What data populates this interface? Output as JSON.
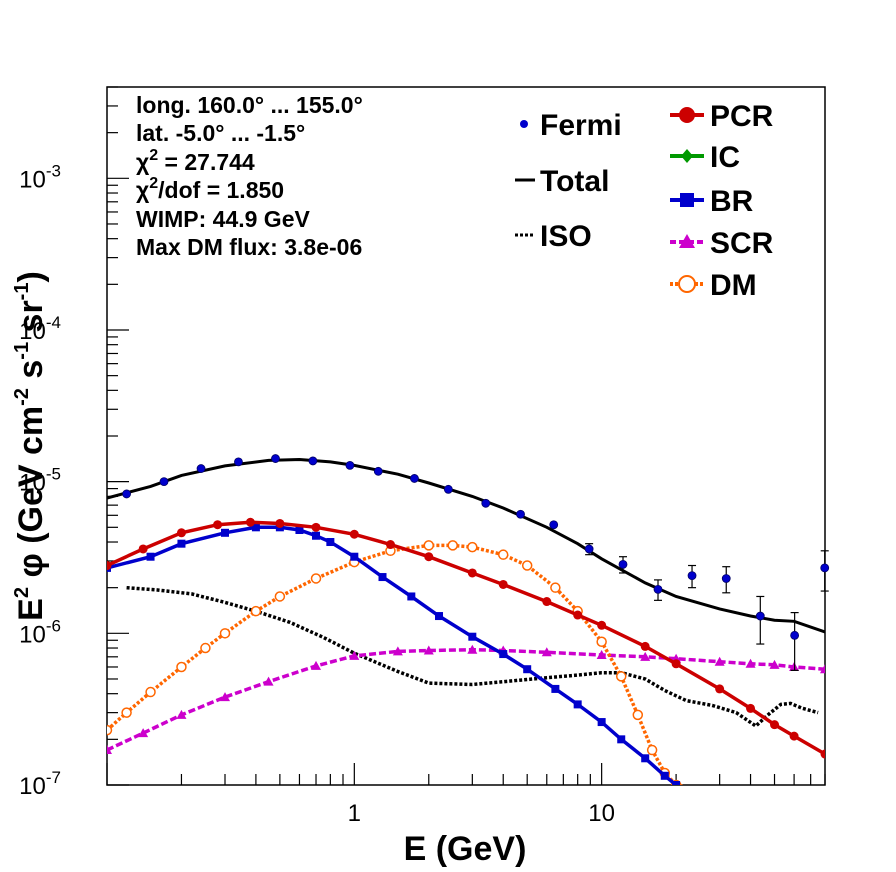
{
  "chart_data": {
    "type": "line",
    "title": "",
    "xlabel": "E (GeV)",
    "ylabel_parts": {
      "a": "E",
      "a_sup": "2",
      "b": " φ (GeV cm",
      "b_sup": "-2",
      "c": " s",
      "c_sup": "-1",
      "d": " sr",
      "d_sup": "-1",
      "e": ")"
    },
    "xscale": "log",
    "yscale": "log",
    "xlim": [
      0.1,
      80
    ],
    "ylim": [
      1e-07,
      0.004
    ],
    "x_ticks": [
      {
        "v": 1,
        "label": "1"
      },
      {
        "v": 10,
        "label": "10"
      }
    ],
    "y_ticks": [
      {
        "v": 1e-07,
        "base": "10",
        "exp": "-7"
      },
      {
        "v": 1e-06,
        "base": "10",
        "exp": "-6"
      },
      {
        "v": 1e-05,
        "base": "10",
        "exp": "-5"
      },
      {
        "v": 0.0001,
        "base": "10",
        "exp": "-4"
      },
      {
        "v": 0.001,
        "base": "10",
        "exp": "-3"
      }
    ],
    "info": [
      {
        "text": "long. 160.0° ... 155.0°"
      },
      {
        "text": "lat. -5.0° ... -1.5°"
      },
      {
        "pre": "χ",
        "sup": "2",
        "post": " = 27.744"
      },
      {
        "pre": "χ",
        "sup": "2",
        "post": "/dof = 1.850"
      },
      {
        "text": "WIMP: 44.9 GeV"
      },
      {
        "text": "Max DM flux: 3.8e-06"
      }
    ],
    "legend_left": [
      {
        "name": "Fermi",
        "style": "point",
        "color": "#0000cc"
      },
      {
        "name": "Total",
        "style": "solid",
        "color": "#000000"
      },
      {
        "name": "ISO",
        "style": "dotted",
        "color": "#000000"
      }
    ],
    "legend_right": [
      {
        "name": "PCR",
        "style": "circle",
        "color": "#cc0000"
      },
      {
        "name": "IC",
        "style": "diamond",
        "color": "#009900"
      },
      {
        "name": "BR",
        "style": "square",
        "color": "#0000cc"
      },
      {
        "name": "SCR",
        "style": "triangle",
        "color": "#cc00cc"
      },
      {
        "name": "DM",
        "style": "open-circle",
        "color": "#ff6600"
      }
    ],
    "fermi": {
      "name": "Fermi",
      "points": [
        {
          "x": 0.12,
          "y": 8.3e-06,
          "err": 0
        },
        {
          "x": 0.17,
          "y": 1e-05,
          "err": 0
        },
        {
          "x": 0.24,
          "y": 1.22e-05,
          "err": 0
        },
        {
          "x": 0.34,
          "y": 1.35e-05,
          "err": 0
        },
        {
          "x": 0.48,
          "y": 1.42e-05,
          "err": 0
        },
        {
          "x": 0.68,
          "y": 1.37e-05,
          "err": 0
        },
        {
          "x": 0.96,
          "y": 1.28e-05,
          "err": 0
        },
        {
          "x": 1.25,
          "y": 1.17e-05,
          "err": 0
        },
        {
          "x": 1.75,
          "y": 1.05e-05,
          "err": 0
        },
        {
          "x": 2.4,
          "y": 8.9e-06,
          "err": 0
        },
        {
          "x": 3.4,
          "y": 7.2e-06,
          "err": 0
        },
        {
          "x": 4.7,
          "y": 6.1e-06,
          "err": 0
        },
        {
          "x": 6.4,
          "y": 5.2e-06,
          "err": 0
        },
        {
          "x": 8.9,
          "y": 3.6e-06,
          "err": 3e-07
        },
        {
          "x": 12.2,
          "y": 2.85e-06,
          "err": 3.5e-07
        },
        {
          "x": 16.9,
          "y": 1.95e-06,
          "err": 3e-07
        },
        {
          "x": 23.2,
          "y": 2.4e-06,
          "err": 4e-07
        },
        {
          "x": 31.9,
          "y": 2.3e-06,
          "err": 4.5e-07
        },
        {
          "x": 43.8,
          "y": 1.3e-06,
          "err": 4.5e-07
        },
        {
          "x": 60.3,
          "y": 9.7e-07,
          "err": 4e-07
        },
        {
          "x": 79.8,
          "y": 2.7e-06,
          "err": 8e-07
        }
      ]
    },
    "series": [
      {
        "name": "Total",
        "color": "#000000",
        "style": "solid",
        "marker": "none",
        "x": [
          0.1,
          0.15,
          0.2,
          0.3,
          0.45,
          0.6,
          0.8,
          1.0,
          1.5,
          2.0,
          3.0,
          4.0,
          6.0,
          8.0,
          10,
          15,
          20,
          30,
          40,
          50,
          60,
          80
        ],
        "y": [
          7.8e-06,
          9.3e-06,
          1.1e-05,
          1.27e-05,
          1.38e-05,
          1.4e-05,
          1.35e-05,
          1.28e-05,
          1.12e-05,
          9.8e-06,
          8e-06,
          6.7e-06,
          5e-06,
          3.9e-06,
          3.1e-06,
          2.15e-06,
          1.75e-06,
          1.45e-06,
          1.3e-06,
          1.22e-06,
          1.2e-06,
          1.02e-06
        ]
      },
      {
        "name": "ISO",
        "color": "#000000",
        "style": "dotted",
        "marker": "none",
        "x": [
          0.12,
          0.16,
          0.22,
          0.3,
          0.4,
          0.55,
          0.75,
          1.0,
          1.5,
          2.0,
          3.0,
          4.0,
          6.0,
          8.0,
          10,
          12,
          15,
          18,
          22,
          28,
          35,
          42,
          47,
          53,
          58,
          65,
          75
        ],
        "y": [
          2e-06,
          1.93e-06,
          1.82e-06,
          1.6e-06,
          1.4e-06,
          1.18e-06,
          9.4e-07,
          7.4e-07,
          5.6e-07,
          4.7e-07,
          4.6e-07,
          4.8e-07,
          5.1e-07,
          5.3e-07,
          5.5e-07,
          5.5e-07,
          5e-07,
          4.2e-07,
          3.6e-07,
          3.35e-07,
          3e-07,
          2.45e-07,
          2.9e-07,
          3.4e-07,
          3.45e-07,
          3.2e-07,
          3e-07
        ]
      },
      {
        "name": "PCR",
        "color": "#cc0000",
        "style": "solid",
        "marker": "circle",
        "x": [
          0.1,
          0.14,
          0.2,
          0.28,
          0.38,
          0.5,
          0.7,
          1.0,
          1.4,
          2.0,
          3.0,
          4.0,
          6.0,
          8.0,
          10,
          15,
          20,
          30,
          40,
          50,
          60,
          80
        ],
        "y": [
          2.8e-06,
          3.6e-06,
          4.6e-06,
          5.2e-06,
          5.4e-06,
          5.3e-06,
          5e-06,
          4.5e-06,
          3.85e-06,
          3.2e-06,
          2.5e-06,
          2.1e-06,
          1.62e-06,
          1.32e-06,
          1.13e-06,
          8.2e-07,
          6.3e-07,
          4.3e-07,
          3.2e-07,
          2.5e-07,
          2.1e-07,
          1.6e-07
        ]
      },
      {
        "name": "BR",
        "color": "#0000cc",
        "style": "solid",
        "marker": "square",
        "x": [
          0.1,
          0.15,
          0.2,
          0.3,
          0.4,
          0.5,
          0.6,
          0.7,
          0.8,
          1.0,
          1.3,
          1.7,
          2.2,
          3.0,
          4.0,
          5.0,
          6.5,
          8.0,
          10,
          12,
          15,
          18,
          20
        ],
        "y": [
          2.7e-06,
          3.2e-06,
          3.9e-06,
          4.6e-06,
          5e-06,
          5e-06,
          4.8e-06,
          4.4e-06,
          4e-06,
          3.2e-06,
          2.35e-06,
          1.75e-06,
          1.3e-06,
          9.5e-07,
          7.3e-07,
          5.8e-07,
          4.3e-07,
          3.4e-07,
          2.6e-07,
          2e-07,
          1.5e-07,
          1.15e-07,
          1e-07
        ]
      },
      {
        "name": "SCR",
        "color": "#cc00cc",
        "style": "dashed",
        "marker": "triangle",
        "x": [
          0.1,
          0.14,
          0.2,
          0.3,
          0.45,
          0.7,
          1.0,
          1.5,
          2.0,
          3.0,
          4.0,
          6.0,
          10,
          15,
          20,
          30,
          40,
          50,
          60,
          80
        ],
        "y": [
          1.7e-07,
          2.2e-07,
          2.9e-07,
          3.8e-07,
          4.8e-07,
          6.1e-07,
          7.1e-07,
          7.6e-07,
          7.7e-07,
          7.8e-07,
          7.7e-07,
          7.5e-07,
          7.2e-07,
          7e-07,
          6.8e-07,
          6.5e-07,
          6.3e-07,
          6.2e-07,
          6e-07,
          5.8e-07
        ]
      },
      {
        "name": "DM",
        "color": "#ff6600",
        "style": "dotted",
        "marker": "open-circle",
        "x": [
          0.1,
          0.12,
          0.15,
          0.2,
          0.25,
          0.3,
          0.4,
          0.5,
          0.7,
          1.0,
          1.4,
          2.0,
          2.5,
          3.0,
          4.0,
          5.0,
          6.5,
          8.0,
          10,
          12,
          14,
          16,
          18,
          20,
          20.5
        ],
        "y": [
          2.3e-07,
          3e-07,
          4.1e-07,
          6e-07,
          8e-07,
          1e-06,
          1.4e-06,
          1.75e-06,
          2.3e-06,
          2.95e-06,
          3.5e-06,
          3.8e-06,
          3.8e-06,
          3.7e-06,
          3.3e-06,
          2.8e-06,
          2e-06,
          1.4e-06,
          8.8e-07,
          5.2e-07,
          2.9e-07,
          1.7e-07,
          1.2e-07,
          1e-07,
          9.5e-08
        ]
      }
    ]
  }
}
